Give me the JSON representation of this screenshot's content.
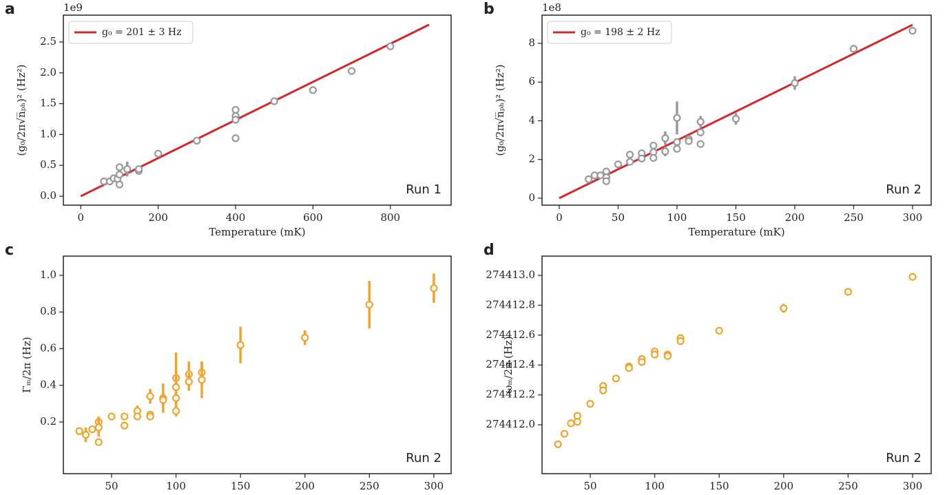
{
  "chart_data": [
    {
      "type": "scatter",
      "panel_label": "a",
      "annotation": "Run 1",
      "offset_label": "1e9",
      "x_label": "Temperature (mK)",
      "y_label": "(g₀/2π√n̅ₚₕ)² (Hz²)",
      "xlim": [
        -45,
        957
      ],
      "ylim": [
        -0.145,
        2.935
      ],
      "xticks": [
        0,
        200,
        400,
        600,
        800
      ],
      "yticks": [
        {
          "value": 0,
          "label": "0.0"
        },
        0.5,
        {
          "value": 1,
          "label": "1.0"
        },
        1.5,
        {
          "value": 2,
          "label": "2.0"
        },
        2.5
      ],
      "legend": "upper left",
      "series": [
        {
          "name": "g₀ = 201 ± 3 Hz",
          "type": "line",
          "color": "#d62728",
          "x": [
            0,
            900
          ],
          "values": [
            0,
            2.78
          ]
        },
        {
          "type": "errorbar",
          "color": "#999999",
          "x": [
            60,
            75,
            85,
            95,
            100,
            100,
            100,
            120,
            150,
            150,
            200,
            300,
            400,
            400,
            400,
            400,
            500,
            600,
            700,
            800
          ],
          "values": [
            0.24,
            0.24,
            0.29,
            0.28,
            0.19,
            0.35,
            0.47,
            0.44,
            0.41,
            0.44,
            0.69,
            0.9,
            1.4,
            1.3,
            1.24,
            0.94,
            1.54,
            1.72,
            2.03,
            2.43
          ],
          "errors": [
            0.02,
            0.02,
            0.02,
            0.02,
            0.03,
            0.03,
            0.06,
            0.12,
            0.03,
            0.03,
            0.03,
            0.02,
            0.03,
            0.03,
            0.06,
            0.06,
            0.02,
            0.03,
            0.05,
            0.03
          ]
        }
      ]
    },
    {
      "type": "scatter",
      "panel_label": "b",
      "annotation": "Run 2",
      "offset_label": "1e8",
      "x_label": "Temperature (mK)",
      "y_label": "(g₀/2π√n̅ₚₕ)² (Hz²)",
      "xlim": [
        -14.6,
        315.8
      ],
      "ylim": [
        -0.36,
        9.46
      ],
      "xticks": [
        0,
        50,
        100,
        150,
        200,
        250,
        300
      ],
      "yticks": [
        0,
        2,
        4,
        6,
        8
      ],
      "legend": "upper left",
      "series": [
        {
          "name": "g₀ = 198 ± 2 Hz",
          "type": "line",
          "color": "#d62728",
          "x": [
            0,
            300
          ],
          "values": [
            0,
            8.96
          ]
        },
        {
          "type": "errorbar",
          "color": "#999999",
          "x": [
            25,
            30,
            35,
            40,
            40,
            40,
            50,
            60,
            60,
            70,
            70,
            80,
            80,
            80,
            90,
            90,
            100,
            100,
            100,
            110,
            110,
            120,
            120,
            120,
            150,
            200,
            250,
            300
          ],
          "values": [
            0.98,
            1.18,
            1.18,
            1.38,
            1.08,
            0.88,
            1.75,
            2.25,
            1.88,
            2.32,
            2.05,
            2.72,
            2.38,
            2.08,
            3.1,
            2.42,
            4.15,
            2.9,
            2.55,
            3.05,
            2.95,
            3.95,
            3.4,
            2.8,
            4.1,
            5.95,
            7.72,
            8.65
          ],
          "errors": [
            0.08,
            0.08,
            0.08,
            0.12,
            0.1,
            0.1,
            0.1,
            0.1,
            0.1,
            0.1,
            0.1,
            0.1,
            0.1,
            0.1,
            0.35,
            0.25,
            0.85,
            0.12,
            0.12,
            0.12,
            0.1,
            0.3,
            0.2,
            0.1,
            0.3,
            0.35,
            0.12,
            0.12
          ]
        }
      ]
    },
    {
      "type": "scatter",
      "panel_label": "c",
      "annotation": "Run 2",
      "x_label": "Temperature (mK)",
      "y_label": "Γₘ/2π (Hz)",
      "xlim": [
        12.6,
        313.4
      ],
      "ylim": [
        -0.082,
        1.105
      ],
      "xticks": [
        50,
        100,
        150,
        200,
        250,
        300
      ],
      "yticks": [
        0.2,
        0.4,
        0.6,
        0.8,
        {
          "value": 1,
          "label": "1.0"
        }
      ],
      "series": [
        {
          "type": "errorbar",
          "color": "#f2a32a",
          "x": [
            25,
            30,
            35,
            40,
            40,
            40,
            50,
            60,
            60,
            70,
            70,
            80,
            80,
            80,
            90,
            90,
            100,
            100,
            100,
            100,
            110,
            110,
            120,
            120,
            150,
            200,
            250,
            300
          ],
          "values": [
            0.15,
            0.13,
            0.16,
            0.2,
            0.17,
            0.09,
            0.23,
            0.23,
            0.18,
            0.26,
            0.23,
            0.34,
            0.24,
            0.23,
            0.33,
            0.32,
            0.44,
            0.39,
            0.33,
            0.26,
            0.46,
            0.42,
            0.47,
            0.43,
            0.62,
            0.66,
            0.84,
            0.93
          ],
          "errors": [
            0.02,
            0.04,
            0.02,
            0.03,
            0.05,
            0.02,
            0.02,
            0.02,
            0.02,
            0.03,
            0.02,
            0.04,
            0.02,
            0.02,
            0.08,
            0.03,
            0.14,
            0.1,
            0.03,
            0.03,
            0.07,
            0.05,
            0.06,
            0.1,
            0.1,
            0.04,
            0.13,
            0.08
          ]
        }
      ]
    },
    {
      "type": "scatter",
      "panel_label": "d",
      "annotation": "Run 2",
      "x_label": "Temperature (mK)",
      "y_label": "ωₘ/2π (Hz)",
      "xlim": [
        12.6,
        314.4
      ],
      "ylim": [
        274411.673,
        274413.129
      ],
      "xticks": [
        50,
        100,
        150,
        200,
        250,
        300
      ],
      "yticks": [
        {
          "value": 274412,
          "label": "274412.0"
        },
        274412.2,
        274412.4,
        274412.6,
        274412.8,
        {
          "value": 274413,
          "label": "274413.0"
        }
      ],
      "series": [
        {
          "type": "errorbar",
          "color": "#f2a32a",
          "x": [
            25,
            30,
            35,
            40,
            40,
            50,
            60,
            60,
            70,
            80,
            80,
            90,
            90,
            100,
            100,
            110,
            110,
            120,
            120,
            150,
            200,
            250,
            300
          ],
          "values": [
            274411.87,
            274411.94,
            274412.01,
            274412.06,
            274412.02,
            274412.14,
            274412.26,
            274412.23,
            274412.31,
            274412.39,
            274412.38,
            274412.44,
            274412.42,
            274412.49,
            274412.47,
            274412.47,
            274412.46,
            274412.58,
            274412.56,
            274412.63,
            274412.78,
            274412.89,
            274412.99
          ],
          "errors": [
            0.01,
            0.01,
            0.01,
            0.02,
            0.01,
            0.01,
            0.01,
            0.01,
            0.01,
            0.01,
            0.01,
            0.01,
            0.01,
            0.01,
            0.01,
            0.01,
            0.01,
            0.01,
            0.01,
            0.01,
            0.03,
            0.02,
            0.01
          ]
        }
      ]
    }
  ]
}
